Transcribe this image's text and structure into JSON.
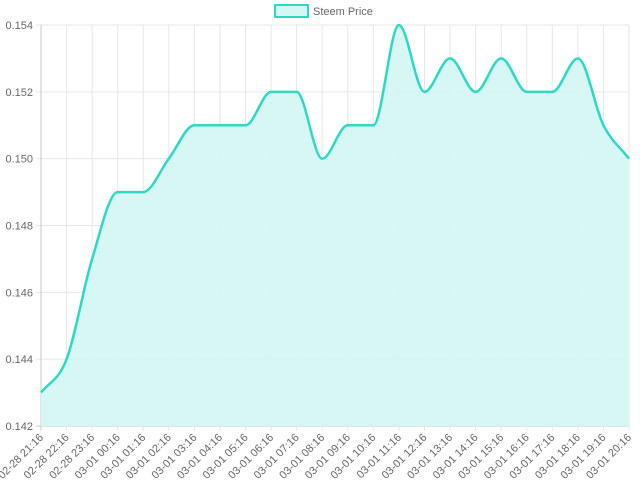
{
  "chart_data": {
    "type": "area",
    "title": "",
    "xlabel": "",
    "ylabel": "",
    "legend": {
      "position": "top-center",
      "entries": [
        "Steem Price"
      ]
    },
    "grid": true,
    "ylim": [
      0.142,
      0.154
    ],
    "yticks": [
      "0.142",
      "0.144",
      "0.146",
      "0.148",
      "0.150",
      "0.152",
      "0.154"
    ],
    "categories": [
      "02-28 21:16",
      "02-28 22:16",
      "02-28 23:16",
      "03-01 00:16",
      "03-01 01:16",
      "03-01 02:16",
      "03-01 03:16",
      "03-01 04:16",
      "03-01 05:16",
      "03-01 06:16",
      "03-01 07:16",
      "03-01 08:16",
      "03-01 09:16",
      "03-01 10:16",
      "03-01 11:16",
      "03-01 12:16",
      "03-01 13:16",
      "03-01 14:16",
      "03-01 15:16",
      "03-01 16:16",
      "03-01 17:16",
      "03-01 18:16",
      "03-01 19:16",
      "03-01 20:16"
    ],
    "series": [
      {
        "name": "Steem Price",
        "values": [
          0.143,
          0.144,
          0.147,
          0.149,
          0.149,
          0.15,
          0.151,
          0.151,
          0.151,
          0.152,
          0.152,
          0.15,
          0.151,
          0.151,
          0.154,
          0.152,
          0.153,
          0.152,
          0.153,
          0.152,
          0.152,
          0.153,
          0.151,
          0.15
        ],
        "line_color": "#2ed8c3",
        "fill_color": "#d4f7f3"
      }
    ]
  }
}
